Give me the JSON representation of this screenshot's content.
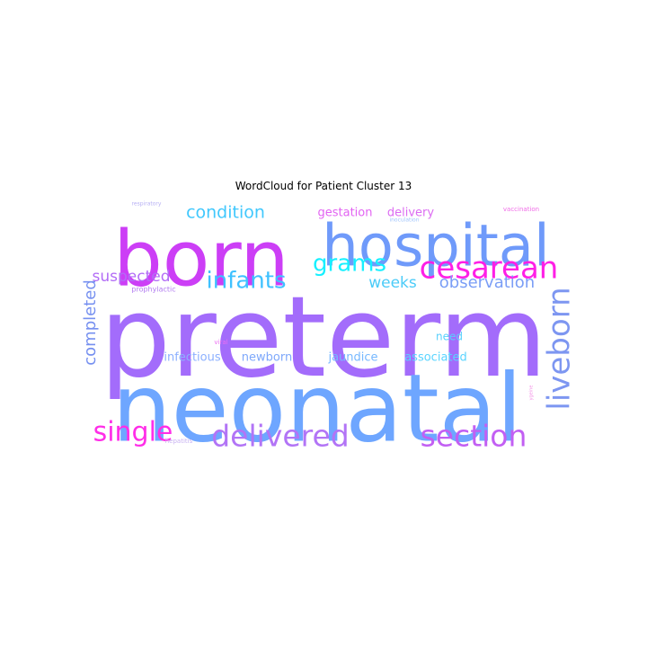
{
  "title": "WordCloud for Patient Cluster 13",
  "words": [
    {
      "text": "preterm",
      "color": "#a36cfb"
    },
    {
      "text": "neonatal",
      "color": "#6ea6ff"
    },
    {
      "text": "born",
      "color": "#cc3ef6"
    },
    {
      "text": "hospital",
      "color": "#6f9afa"
    },
    {
      "text": "cesarean",
      "color": "#ff1fe6"
    },
    {
      "text": "grams",
      "color": "#16f0ff"
    },
    {
      "text": "infants",
      "color": "#3fc1ff"
    },
    {
      "text": "condition",
      "color": "#41c8fd"
    },
    {
      "text": "suspected",
      "color": "#b26cf6"
    },
    {
      "text": "weeks",
      "color": "#4acbf8"
    },
    {
      "text": "observation",
      "color": "#7b9ef6"
    },
    {
      "text": "liveborn",
      "color": "#7d96f1"
    },
    {
      "text": "completed",
      "color": "#7690f0"
    },
    {
      "text": "single",
      "color": "#ff2ee8"
    },
    {
      "text": "delivered",
      "color": "#b274f6"
    },
    {
      "text": "section",
      "color": "#c25ff3"
    },
    {
      "text": "gestation",
      "color": "#e263f2"
    },
    {
      "text": "delivery",
      "color": "#dc6cf2"
    },
    {
      "text": "infectious",
      "color": "#8cb0ff"
    },
    {
      "text": "newborn",
      "color": "#7ea8fb"
    },
    {
      "text": "jaundice",
      "color": "#76b8ff"
    },
    {
      "text": "associated",
      "color": "#59d4ff"
    },
    {
      "text": "need",
      "color": "#58cffc"
    },
    {
      "text": "prophylactic",
      "color": "#b37ef0"
    },
    {
      "text": "viral",
      "color": "#ec6ef2"
    },
    {
      "text": "respiratory",
      "color": "#b7b0f4"
    },
    {
      "text": "inoculation",
      "color": "#a2c5fb"
    },
    {
      "text": "vaccination",
      "color": "#f06ee7"
    },
    {
      "text": "hepatitis",
      "color": "#c8b2f2"
    },
    {
      "text": "ygeine",
      "color": "#f38ee6"
    }
  ]
}
